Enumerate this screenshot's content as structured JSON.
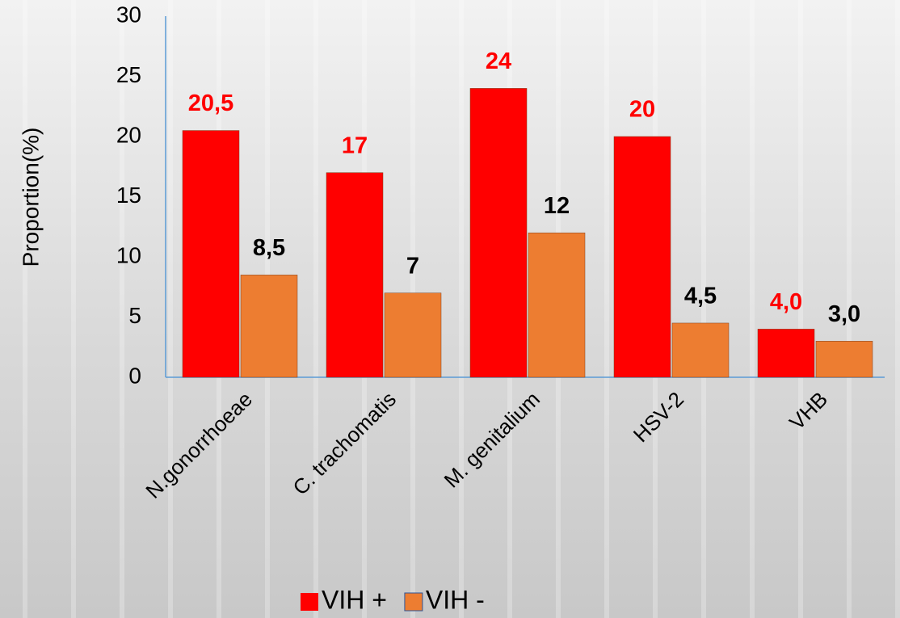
{
  "chart_data": {
    "type": "bar",
    "y_label": "Proportion(%)",
    "categories": [
      "N.gonorrhoeae",
      "C. trachomatis",
      "M. genitalium",
      "HSV-2",
      "VHB"
    ],
    "series": [
      {
        "name": "VIH +",
        "color": "#ff0000",
        "values": [
          20.5,
          17,
          24,
          20,
          4.0
        ],
        "value_labels": [
          "20,5",
          "17",
          "24",
          "20",
          "4,0"
        ]
      },
      {
        "name": "VIH -",
        "color": "#ed7d31",
        "values": [
          8.5,
          7,
          12,
          4.5,
          3.0
        ],
        "value_labels": [
          "8,5",
          "7",
          "12",
          "4,5",
          "3,0"
        ]
      }
    ],
    "ylim": [
      0,
      30
    ],
    "yticks": [
      0,
      5,
      10,
      15,
      20,
      25,
      30
    ],
    "grid": false,
    "legend": "bottom"
  }
}
